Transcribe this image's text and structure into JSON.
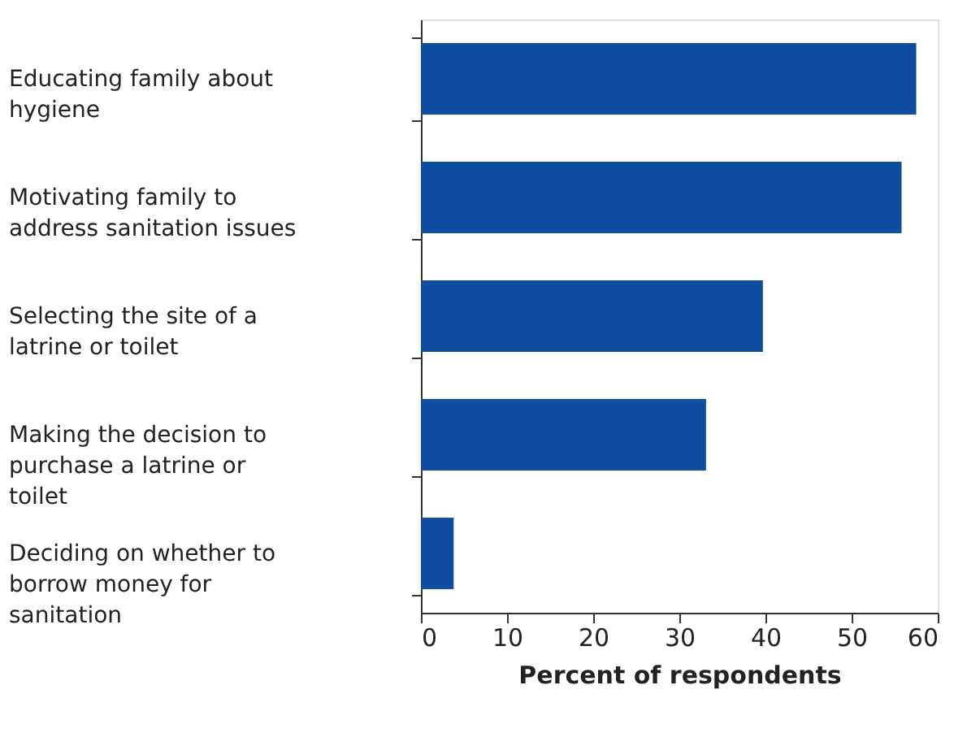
{
  "chart_data": {
    "type": "bar",
    "orientation": "horizontal",
    "xlabel": "Percent of respondents",
    "categories": [
      "Educating family about hygiene",
      "Motivating family to address sanitation issues",
      "Selecting the site of a latrine or toilet",
      "Making the decision to purchase a latrine or toilet",
      "Deciding on whether to borrow money for sanitation"
    ],
    "values": [
      57.5,
      55.8,
      39.7,
      33.1,
      3.8
    ],
    "color": "#0e4da0",
    "xlim": [
      0,
      60
    ],
    "xticks": [
      0,
      10,
      20,
      30,
      40,
      50,
      60
    ],
    "grid": false
  }
}
